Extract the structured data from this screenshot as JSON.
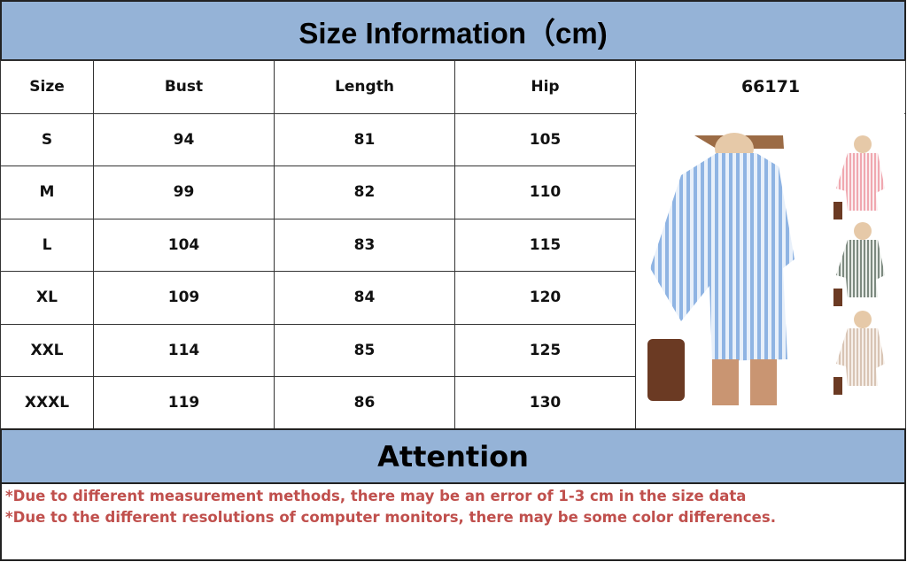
{
  "title": "Size Information（cm)",
  "table": {
    "headers": [
      "Size",
      "Bust",
      "Length",
      "Hip",
      "66171"
    ],
    "rows": [
      [
        "S",
        "94",
        "81",
        "105"
      ],
      [
        "M",
        "99",
        "82",
        "110"
      ],
      [
        "L",
        "104",
        "83",
        "115"
      ],
      [
        "XL",
        "109",
        "84",
        "120"
      ],
      [
        "XXL",
        "114",
        "85",
        "125"
      ],
      [
        "XXXL",
        "119",
        "86",
        "130"
      ]
    ]
  },
  "product_image": {
    "main_color": "#8fb4e3",
    "variants": [
      "#f0a8b0",
      "#7d8a80",
      "#d8c4b4"
    ]
  },
  "attention": {
    "title": "Attention",
    "notes": [
      "*Due to different measurement methods, there may be an error of 1-3 cm in the size data",
      "*Due to the different resolutions of computer monitors, there may be some color differences."
    ]
  }
}
